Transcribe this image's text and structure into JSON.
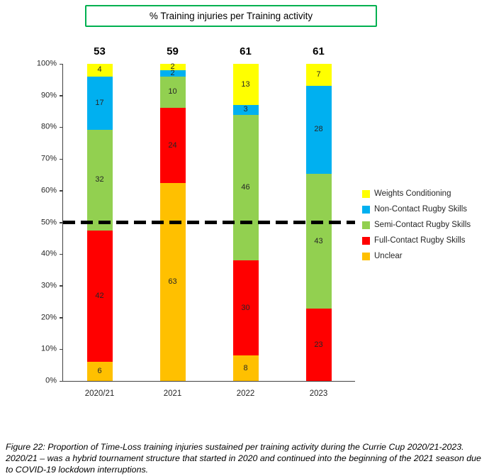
{
  "title": "% Training injuries per Training activity",
  "caption": "Figure 22: Proportion of Time-Loss training injuries sustained per training activity during the Currie Cup 2020/21-2023. 2020/21 – was a hybrid tournament structure that started in 2020 and continued into the beginning of the 2021 season due to COVID-19 lockdown interruptions.",
  "chart_data": {
    "type": "bar",
    "stacked": true,
    "percent_stacked": true,
    "title": "% Training injuries per Training activity",
    "categories": [
      "2020/21",
      "2021",
      "2022",
      "2023"
    ],
    "totals": [
      53,
      59,
      61,
      61
    ],
    "series": [
      {
        "name": "Unclear",
        "color": "#FFC000",
        "values": [
          6,
          63,
          8,
          0
        ]
      },
      {
        "name": "Full-Contact Rugby Skills",
        "color": "#FF0000",
        "values": [
          42,
          24,
          30,
          23
        ]
      },
      {
        "name": "Semi-Contact Rugby Skills",
        "color": "#92D050",
        "values": [
          32,
          10,
          46,
          43
        ]
      },
      {
        "name": "Non-Contact Rugby Skills",
        "color": "#00B0F0",
        "values": [
          17,
          2,
          3,
          28
        ]
      },
      {
        "name": "Weights Conditioning",
        "color": "#FFFF00",
        "values": [
          4,
          2,
          13,
          7
        ]
      }
    ],
    "xlabel": "",
    "ylabel": "",
    "ylim": [
      0,
      100
    ],
    "ytick_step": 10,
    "ytick_suffix": "%",
    "grid": false,
    "reference_line": {
      "value": 50,
      "style": "dashed",
      "color": "#000000"
    },
    "legend_position": "right",
    "legend": [
      {
        "label": "Weights Conditioning",
        "color": "#FFFF00"
      },
      {
        "label": "Non-Contact Rugby Skills",
        "color": "#00B0F0"
      },
      {
        "label": "Semi-Contact Rugby Skills",
        "color": "#92D050"
      },
      {
        "label": "Full-Contact Rugby Skills",
        "color": "#FF0000"
      },
      {
        "label": "Unclear",
        "color": "#FFC000"
      }
    ]
  }
}
